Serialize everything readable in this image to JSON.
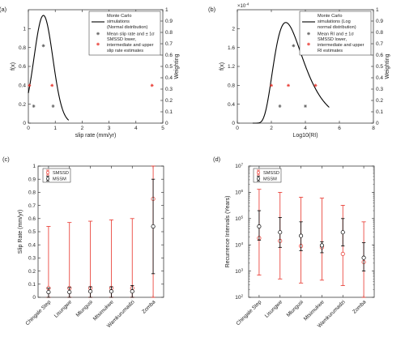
{
  "colors": {
    "black": "#000000",
    "red": "#e8332a",
    "axis": "#222222"
  },
  "chart_data": [
    {
      "id": "a",
      "type": "line",
      "panel_label": "(a)",
      "xlabel": "slip rate (mm/yr)",
      "ylabel": "f(x)",
      "y2label": "Weighting",
      "xlim": [
        0,
        5
      ],
      "ylim": [
        0,
        1.2
      ],
      "y2lim": [
        0,
        1
      ],
      "xticks": [
        0,
        1,
        2,
        3,
        4,
        5
      ],
      "yticks": [
        0,
        0.2,
        0.4,
        0.6,
        0.8,
        1
      ],
      "y2ticks": [
        0,
        0.1,
        0.2,
        0.3,
        0.4,
        0.5,
        0.6,
        0.7,
        0.8,
        0.9,
        1
      ],
      "curve": {
        "distribution": "normal",
        "mean": 0.56,
        "sd": 0.35,
        "x": [
          0,
          1.5
        ]
      },
      "series": [
        {
          "name": "Monte Carlo simulations (Normal distribution)",
          "kind": "line",
          "color": "#000000"
        },
        {
          "name": "Mean slip rate and ± 1σ",
          "kind": "points",
          "marker": "star",
          "color": "#555555",
          "points": [
            [
              0.2,
              0.18
            ],
            [
              0.56,
              0.82
            ],
            [
              0.92,
              0.18
            ]
          ]
        },
        {
          "name": "SMSSD lower, intermediate and upper slip rate estimates",
          "kind": "points",
          "marker": "star",
          "color": "#e8332a",
          "points": [
            [
              0.04,
              0.4
            ],
            [
              0.88,
              0.4
            ],
            [
              4.6,
              0.4
            ]
          ]
        }
      ],
      "legend": {
        "placement": "top-right",
        "entries": [
          "Monte Carlo",
          "simulations",
          "(Normal distribution)",
          "Mean slip rate and ± 1σ",
          "SMSSD lower,",
          "intermediate and upper",
          "slip rate estimates"
        ]
      }
    },
    {
      "id": "b",
      "type": "line",
      "panel_label": "(b)",
      "xlabel": "Log10(RI)",
      "ylabel": "f(x)",
      "y2label": "Weighting",
      "exponent_label": "×10",
      "exponent": "-4",
      "xlim": [
        0,
        8
      ],
      "ylim": [
        0,
        2.4
      ],
      "y2lim": [
        0,
        1
      ],
      "xticks": [
        0,
        2,
        4,
        6,
        8
      ],
      "yticks": [
        0,
        0.4,
        0.8,
        1.2,
        1.6,
        2.0
      ],
      "ytick_labels": [
        "0",
        "0.4",
        "0.8",
        "1.2",
        "1.6",
        "2"
      ],
      "y2ticks": [
        0,
        0.1,
        0.2,
        0.3,
        0.4,
        0.5,
        0.6,
        0.7,
        0.8,
        0.9,
        1
      ],
      "curve": {
        "distribution": "lognormal",
        "peak_x": 2.85,
        "peak_y": 2.13,
        "x": [
          0.9,
          5.4
        ]
      },
      "series": [
        {
          "name": "Monte Carlo simulations (Log normal distribution)",
          "kind": "line",
          "color": "#000000"
        },
        {
          "name": "Mean RI and ± 1σ",
          "kind": "points",
          "marker": "star",
          "color": "#555555",
          "points": [
            [
              2.5,
              0.36
            ],
            [
              3.3,
              1.64
            ],
            [
              4.0,
              0.36
            ]
          ]
        },
        {
          "name": "SMSSD lower, intermediate and upper RI estimates",
          "kind": "points",
          "marker": "star",
          "color": "#e8332a",
          "points": [
            [
              2.0,
              0.8
            ],
            [
              3.0,
              0.8
            ],
            [
              4.6,
              0.8
            ]
          ]
        }
      ],
      "legend": {
        "placement": "top-right",
        "entries": [
          "Monte Carlo",
          "simulations (Log",
          "normal distribution)",
          "Mean RI and ± 1σ",
          "SMSSD lower,",
          "intermediate and upper",
          "RI estimates"
        ]
      }
    },
    {
      "id": "c",
      "type": "scatter",
      "panel_label": "(c)",
      "ylabel": "Slip Rate (mm/yr)",
      "ylim": [
        0,
        1
      ],
      "yticks": [
        0,
        0.1,
        0.2,
        0.3,
        0.4,
        0.5,
        0.6,
        0.7,
        0.8,
        0.9,
        1
      ],
      "ytick_labels": [
        "0",
        "0.1",
        "0.2",
        "0.3",
        "0.4",
        "0.5",
        "0.6",
        "0.7",
        "0.8",
        "0.9",
        "1"
      ],
      "categories": [
        "Chingale Step",
        "Lisungwe",
        "Mlungusi",
        "Mtsimukwe",
        "Wamkurumadzi",
        "Zomba"
      ],
      "legend": {
        "placement": "top-left",
        "entries": [
          "SMSSD",
          "MSSM"
        ]
      },
      "series": [
        {
          "name": "SMSSD",
          "color": "#e8332a",
          "values": [
            0.07,
            0.07,
            0.07,
            0.07,
            0.07,
            0.75
          ],
          "lower": [
            0.0,
            0.0,
            0.0,
            0.0,
            0.0,
            0.0
          ],
          "upper": [
            0.54,
            0.57,
            0.58,
            0.59,
            0.6,
            1.0
          ]
        },
        {
          "name": "MSSM",
          "color": "#000000",
          "values": [
            0.04,
            0.04,
            0.045,
            0.045,
            0.045,
            0.54
          ],
          "lower": [
            0.0,
            0.0,
            0.0,
            0.0,
            0.0,
            0.18
          ],
          "upper": [
            0.07,
            0.075,
            0.08,
            0.08,
            0.09,
            0.9
          ]
        }
      ]
    },
    {
      "id": "d",
      "type": "scatter",
      "panel_label": "(d)",
      "ylabel": "Recurrence Intervals (Years)",
      "yscale": "log",
      "ylim": [
        100,
        10000000
      ],
      "yticks": [
        100,
        1000,
        10000,
        100000,
        1000000,
        10000000
      ],
      "ytick_base": "10",
      "ytick_exponents": [
        "2",
        "3",
        "4",
        "5",
        "6",
        "7"
      ],
      "categories": [
        "Chingale Step",
        "Lisungwe",
        "Mlungusi",
        "Mtsimukwe",
        "Wamkurumadzi",
        "Zomba"
      ],
      "legend": {
        "placement": "top-left",
        "entries": [
          "SMSSD",
          "MSSM"
        ]
      },
      "series": [
        {
          "name": "SMSSD",
          "color": "#e8332a",
          "values": [
            18000,
            14000,
            9000,
            8000,
            4500,
            2200
          ],
          "lower": [
            700,
            500,
            350,
            450,
            280,
            100
          ],
          "upper": [
            1300000,
            1000000,
            650000,
            600000,
            320000,
            75000
          ]
        },
        {
          "name": "MSSM",
          "color": "#000000",
          "values": [
            50000,
            30000,
            22000,
            9500,
            30000,
            3200
          ],
          "lower": [
            15000,
            8000,
            6000,
            5000,
            9000,
            1000
          ],
          "upper": [
            200000,
            110000,
            75000,
            13000,
            100000,
            12000
          ]
        }
      ]
    }
  ]
}
